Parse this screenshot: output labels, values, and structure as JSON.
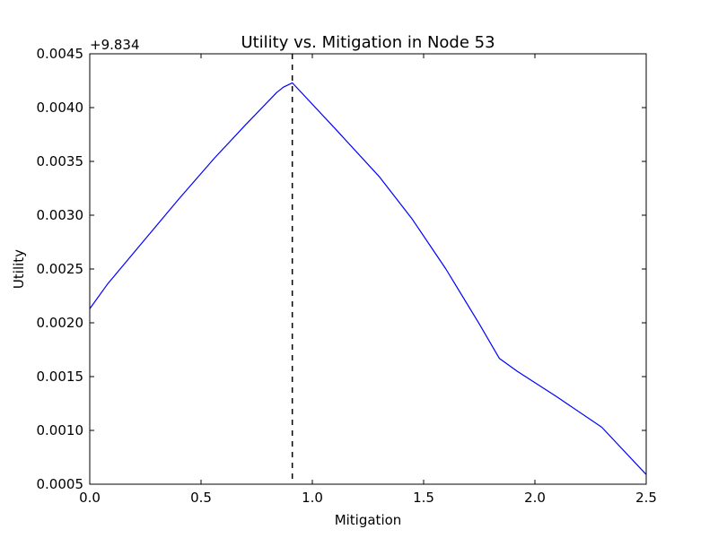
{
  "chart_data": {
    "type": "line",
    "title": "Utility vs. Mitigation in Node 53",
    "xlabel": "Mitigation",
    "ylabel": "Utility",
    "offset_label": "+9.834",
    "xlim": [
      0.0,
      2.5
    ],
    "ylim": [
      0.0005,
      0.0045
    ],
    "xticks": [
      0.0,
      0.5,
      1.0,
      1.5,
      2.0,
      2.5
    ],
    "xtick_labels": [
      "0.0",
      "0.5",
      "1.0",
      "1.5",
      "2.0",
      "2.5"
    ],
    "yticks": [
      0.0005,
      0.001,
      0.0015,
      0.002,
      0.0025,
      0.003,
      0.0035,
      0.004,
      0.0045
    ],
    "ytick_labels": [
      "0.0005",
      "0.0010",
      "0.0015",
      "0.0020",
      "0.0025",
      "0.0030",
      "0.0035",
      "0.0040",
      "0.0045"
    ],
    "grid": false,
    "series": [
      {
        "color": "#0000ff",
        "x": [
          0.0,
          0.08,
          0.25,
          0.4,
          0.56,
          0.7,
          0.84,
          0.87,
          0.91,
          1.1,
          1.3,
          1.45,
          1.6,
          1.75,
          1.84,
          1.92,
          2.1,
          2.3,
          2.5
        ],
        "y": [
          0.00213,
          0.00236,
          0.00278,
          0.00315,
          0.00353,
          0.00384,
          0.00414,
          0.00419,
          0.00423,
          0.00381,
          0.00336,
          0.00296,
          0.0025,
          0.00199,
          0.00167,
          0.00155,
          0.00131,
          0.00103,
          0.00059
        ]
      }
    ],
    "vlines": [
      {
        "x": 0.91,
        "style": "dashed",
        "color": "#000000"
      }
    ]
  }
}
